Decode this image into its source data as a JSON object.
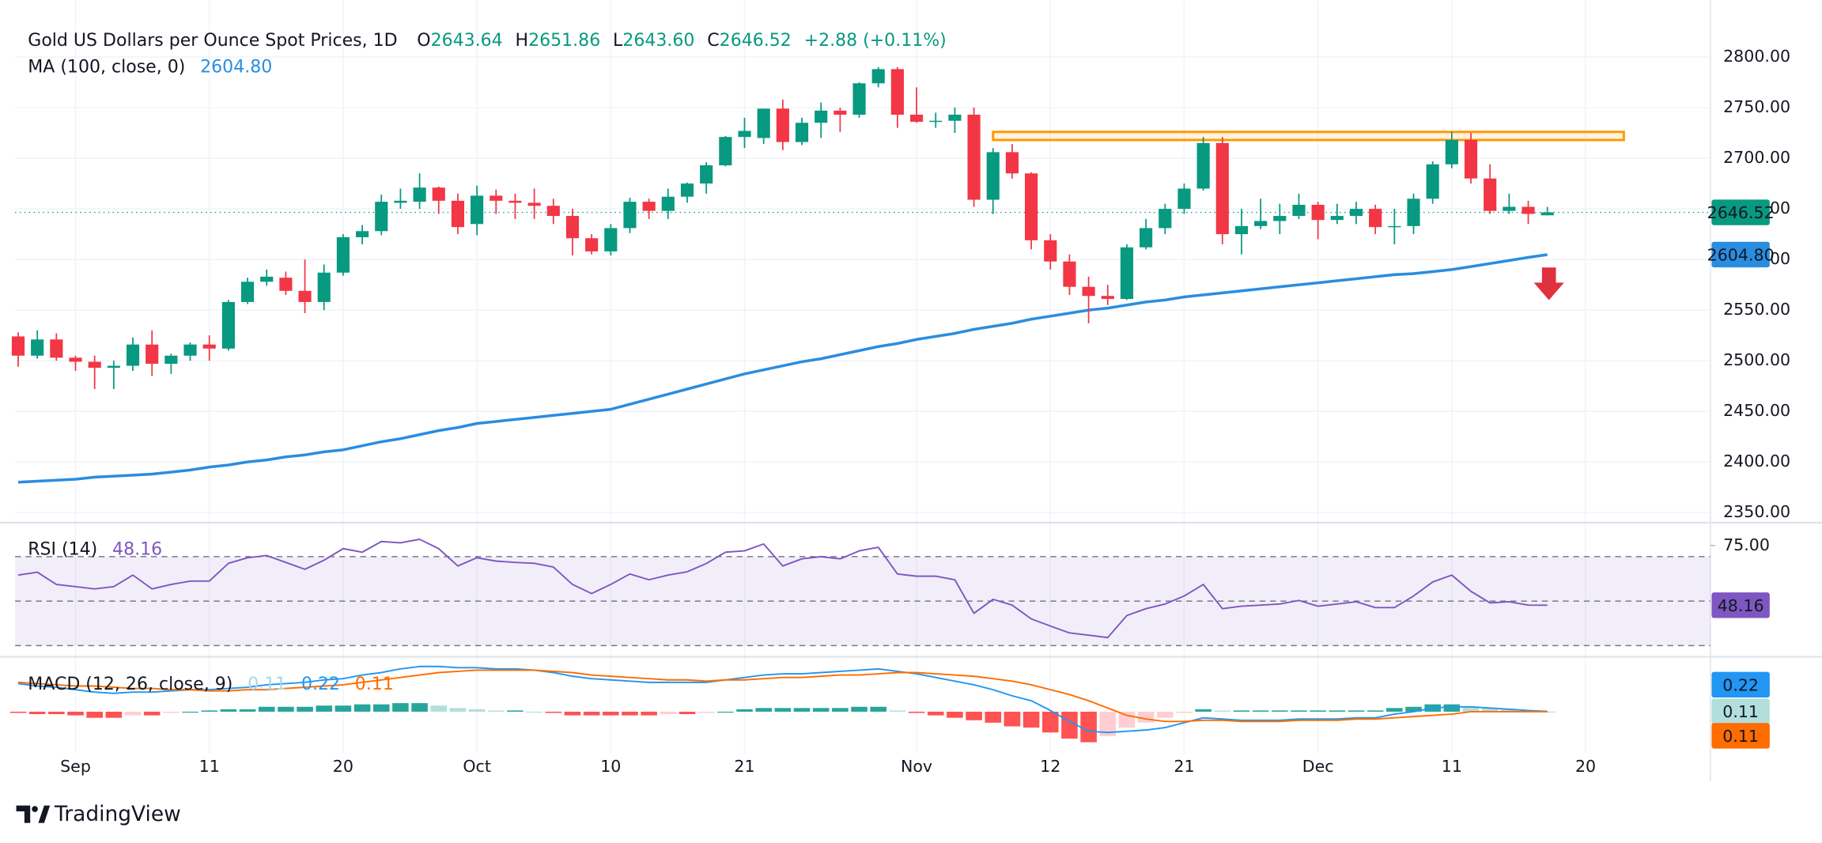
{
  "chart_data": [
    {
      "type": "candlestick",
      "title": "Gold US Dollars per Ounce Spot Prices, 1D",
      "legend_labels": [
        {
          "key": "O",
          "value": "2643.64"
        },
        {
          "key": "H",
          "value": "2651.86"
        },
        {
          "key": "L",
          "value": "2643.60"
        },
        {
          "key": "C",
          "value": "2646.52"
        }
      ],
      "change_label": "+2.88 (+0.11%)",
      "categories": [
        null,
        null,
        null,
        "Sep",
        null,
        null,
        null,
        null,
        null,
        null,
        "11",
        null,
        null,
        null,
        null,
        null,
        null,
        "20",
        null,
        null,
        null,
        null,
        null,
        null,
        "Oct",
        null,
        null,
        null,
        null,
        null,
        null,
        "10",
        null,
        null,
        null,
        null,
        null,
        null,
        "21",
        null,
        null,
        null,
        null,
        null,
        null,
        null,
        null,
        "Nov",
        null,
        null,
        null,
        null,
        null,
        null,
        "12",
        null,
        null,
        null,
        null,
        null,
        null,
        "21",
        null,
        null,
        null,
        null,
        null,
        null,
        "Dec",
        null,
        null,
        null,
        null,
        null,
        null,
        "11",
        null,
        null,
        null,
        null,
        null,
        null,
        "20"
      ],
      "open": [
        2524,
        2505,
        2521,
        2503,
        2499,
        2493,
        2495,
        2516,
        2497,
        2505,
        2516,
        2512,
        2558,
        2578,
        2582,
        2569,
        2558,
        2587,
        2622,
        2628,
        2656,
        2657,
        2671,
        2658,
        2635,
        2663,
        2658,
        2656,
        2653,
        2643,
        2621,
        2608,
        2631,
        2657,
        2648,
        2662,
        2675,
        2693,
        2721,
        2720,
        2749,
        2716,
        2735,
        2747,
        2743,
        2774,
        2788,
        2743,
        2736,
        2737,
        2743,
        2659,
        2706,
        2685,
        2619,
        2598,
        2573,
        2564,
        2561,
        2612,
        2631,
        2650,
        2670,
        2715,
        2625,
        2633,
        2638,
        2643,
        2654,
        2639,
        2643,
        2650,
        2632,
        2633,
        2660,
        2694,
        2718,
        2680,
        2648,
        2652,
        2643.64,
        null,
        null
      ],
      "high": [
        2528,
        2530,
        2527,
        2505,
        2505,
        2500,
        2523,
        2530,
        2507,
        2518,
        2525,
        2560,
        2582,
        2590,
        2588,
        2600,
        2595,
        2625,
        2634,
        2664,
        2670,
        2685,
        2672,
        2665,
        2673,
        2669,
        2665,
        2670,
        2660,
        2650,
        2625,
        2635,
        2661,
        2660,
        2670,
        2676,
        2696,
        2722,
        2740,
        2749,
        2758,
        2740,
        2755,
        2750,
        2775,
        2790,
        2790,
        2770,
        2745,
        2750,
        2750,
        2710,
        2714,
        2686,
        2625,
        2605,
        2583,
        2575,
        2615,
        2640,
        2655,
        2675,
        2721,
        2721,
        2650,
        2660,
        2655,
        2665,
        2657,
        2655,
        2657,
        2654,
        2650,
        2665,
        2697,
        2726,
        2725,
        2694,
        2665,
        2658,
        2651.86,
        null,
        null
      ],
      "low": [
        2494,
        2502,
        2500,
        2490,
        2472,
        2472,
        2490,
        2485,
        2487,
        2500,
        2500,
        2510,
        2556,
        2574,
        2565,
        2547,
        2550,
        2584,
        2615,
        2624,
        2650,
        2650,
        2645,
        2625,
        2624,
        2645,
        2640,
        2640,
        2635,
        2604,
        2605,
        2604,
        2626,
        2640,
        2640,
        2656,
        2665,
        2692,
        2710,
        2714,
        2708,
        2713,
        2720,
        2726,
        2740,
        2770,
        2730,
        2735,
        2730,
        2725,
        2652,
        2645,
        2680,
        2610,
        2590,
        2565,
        2537,
        2555,
        2560,
        2610,
        2625,
        2645,
        2668,
        2615,
        2605,
        2630,
        2625,
        2640,
        2620,
        2635,
        2635,
        2625,
        2615,
        2625,
        2655,
        2690,
        2675,
        2645,
        2645,
        2635,
        2643.6,
        null,
        null
      ],
      "close": [
        2505,
        2521,
        2503,
        2499,
        2493,
        2495,
        2516,
        2497,
        2505,
        2516,
        2512,
        2558,
        2578,
        2583,
        2569,
        2558,
        2587,
        2622,
        2628,
        2657,
        2658,
        2671,
        2658,
        2632,
        2663,
        2658,
        2656,
        2653,
        2643,
        2621,
        2608,
        2631,
        2657,
        2648,
        2662,
        2675,
        2693,
        2721,
        2727,
        2749,
        2716,
        2735,
        2747,
        2743,
        2774,
        2788,
        2743,
        2736,
        2737,
        2743,
        2659,
        2706,
        2685,
        2619,
        2598,
        2573,
        2564,
        2561,
        2612,
        2631,
        2650,
        2670,
        2715,
        2625,
        2633,
        2638,
        2643,
        2654,
        2639,
        2643,
        2650,
        2632,
        2633,
        2660,
        2694,
        2718,
        2680,
        2648,
        2652,
        2645,
        2646.52,
        null,
        null
      ],
      "up_color": "#089981",
      "down_color": "#f23645",
      "ylim": [
        2343,
        2856
      ],
      "yticks": [
        {
          "value": 2350,
          "label": "2350.00"
        },
        {
          "value": 2400,
          "label": "2400.00"
        },
        {
          "value": 2450,
          "label": "2450.00"
        },
        {
          "value": 2500,
          "label": "2500.00"
        },
        {
          "value": 2550,
          "label": "2550.00"
        },
        {
          "value": 2600,
          "label": "2600.00"
        },
        {
          "value": 2650,
          "label": "2650.00"
        },
        {
          "value": 2700,
          "label": "2700.00"
        },
        {
          "value": 2750,
          "label": "2750.00"
        },
        {
          "value": 2800,
          "label": "2800.00"
        }
      ],
      "grid": true,
      "overlays": [
        {
          "name": "MA (100, close, 0)",
          "color": "#2a8de0",
          "value_label": "2604.80",
          "values": [
            2380,
            2381,
            2382,
            2383,
            2385,
            2386,
            2387,
            2388,
            2390,
            2392,
            2395,
            2397,
            2400,
            2402,
            2405,
            2407,
            2410,
            2412,
            2416,
            2420,
            2423,
            2427,
            2431,
            2434,
            2438,
            2440,
            2442,
            2444,
            2446,
            2448,
            2450,
            2452,
            2457,
            2462,
            2467,
            2472,
            2477,
            2482,
            2487,
            2491,
            2495,
            2499,
            2502,
            2506,
            2510,
            2514,
            2517,
            2521,
            2524,
            2527,
            2531,
            2534,
            2537,
            2541,
            2544,
            2547,
            2550,
            2552,
            2555,
            2558,
            2560,
            2563,
            2565,
            2567,
            2569,
            2571,
            2573,
            2575,
            2577,
            2579,
            2581,
            2583,
            2585,
            2586,
            2588,
            2590,
            2593,
            2596,
            2599,
            2602,
            2604.8,
            null,
            null
          ]
        }
      ],
      "zone": {
        "low": 2718,
        "high": 2726,
        "start": 51,
        "end": 84,
        "color": "#ff9800"
      }
    },
    {
      "type": "line",
      "name": "RSI (14)",
      "color": "#7e57c2",
      "values": [
        61.7,
        63,
        57.5,
        56.5,
        55.5,
        56.5,
        61.7,
        55.5,
        57.5,
        59,
        59,
        67,
        69.5,
        70.5,
        67.4,
        64.3,
        68.4,
        73.6,
        72,
        76.8,
        76.2,
        77.8,
        73.6,
        65.8,
        69.5,
        68,
        67.4,
        67,
        65.3,
        57.5,
        53.4,
        57.5,
        62.2,
        59.6,
        61.7,
        63.2,
        66.9,
        72,
        72.6,
        75.7,
        65.8,
        69,
        70,
        69,
        72.6,
        74.2,
        62.2,
        61.2,
        61.2,
        59.6,
        44.5,
        50.8,
        48.2,
        42,
        38.8,
        35.7,
        34.7,
        33.6,
        43.5,
        46.6,
        48.7,
        52.3,
        57.5,
        46.6,
        47.7,
        48.2,
        48.7,
        50.3,
        47.7,
        48.7,
        49.7,
        47.1,
        47.1,
        52.3,
        58.6,
        61.7,
        54.4,
        49.2,
        49.7,
        48.2,
        48.16,
        null,
        null
      ],
      "ylim": [
        26,
        84
      ],
      "yticks": [
        {
          "value": 75,
          "label": "75.00"
        }
      ],
      "levels": [
        70,
        50,
        30
      ],
      "band_color": "#7e57c2"
    },
    {
      "type": "macd",
      "name": "MACD (12, 26, close, 9)",
      "ylim": [
        -34,
        43
      ],
      "histogram": {
        "colors": [
          "#26a69a",
          "#b2dfdb",
          "#ffcdd2",
          "#ff5252"
        ],
        "values": [
          -1,
          -2,
          -2,
          -3,
          -5,
          -5,
          -3,
          -3,
          -1,
          0,
          1,
          2,
          2,
          4,
          4,
          4,
          5,
          5,
          6,
          6,
          7,
          7,
          5,
          3,
          2,
          1,
          1,
          0,
          -1,
          -3,
          -3,
          -3,
          -3,
          -3,
          -2,
          -2,
          -1,
          0,
          2,
          3,
          3,
          3,
          3,
          3,
          4,
          4,
          1,
          -1,
          -3,
          -5,
          -7,
          -9,
          -12,
          -13,
          -17,
          -22,
          -25,
          -20,
          -13,
          -9,
          -5,
          -1,
          2,
          1,
          1,
          1,
          1,
          1,
          1,
          1,
          1,
          1,
          3,
          4,
          6,
          6,
          4,
          3,
          2,
          1,
          0.11,
          null,
          null
        ]
      },
      "macd": {
        "color": "#2196f3",
        "values": [
          23,
          21,
          20,
          18,
          16,
          15,
          16,
          16,
          17,
          18,
          18,
          19,
          20,
          22,
          23,
          24,
          26,
          27,
          30,
          32,
          35,
          37,
          37,
          36,
          36,
          35,
          35,
          34,
          32,
          29,
          27,
          26,
          25,
          24,
          24,
          24,
          24,
          26,
          28,
          30,
          31,
          31,
          32,
          33,
          34,
          35,
          33,
          31,
          28,
          25,
          22,
          18,
          13,
          9,
          1,
          -8,
          -16,
          -17,
          -16,
          -15,
          -13,
          -9,
          -5,
          -6,
          -7,
          -7,
          -7,
          -6,
          -6,
          -6,
          -5,
          -5,
          -2,
          0,
          3,
          4,
          4,
          3,
          2,
          1,
          0.22,
          null,
          null
        ]
      },
      "signal": {
        "color": "#ff6d00",
        "values": [
          24,
          23,
          22,
          21,
          21,
          20,
          19,
          19,
          18,
          18,
          17,
          17,
          18,
          18,
          19,
          20,
          21,
          22,
          24,
          26,
          28,
          30,
          32,
          33,
          34,
          34,
          34,
          34,
          33,
          32,
          30,
          29,
          28,
          27,
          26,
          26,
          25,
          26,
          26,
          27,
          28,
          28,
          29,
          30,
          30,
          31,
          32,
          32,
          31,
          30,
          29,
          27,
          25,
          22,
          18,
          14,
          9,
          3,
          -3,
          -6,
          -8,
          -8,
          -7,
          -7,
          -8,
          -8,
          -8,
          -7,
          -7,
          -7,
          -6,
          -6,
          -5,
          -4,
          -3,
          -2,
          0,
          0,
          0,
          0,
          0.11,
          null,
          null
        ]
      }
    }
  ],
  "brand": "TradingView"
}
